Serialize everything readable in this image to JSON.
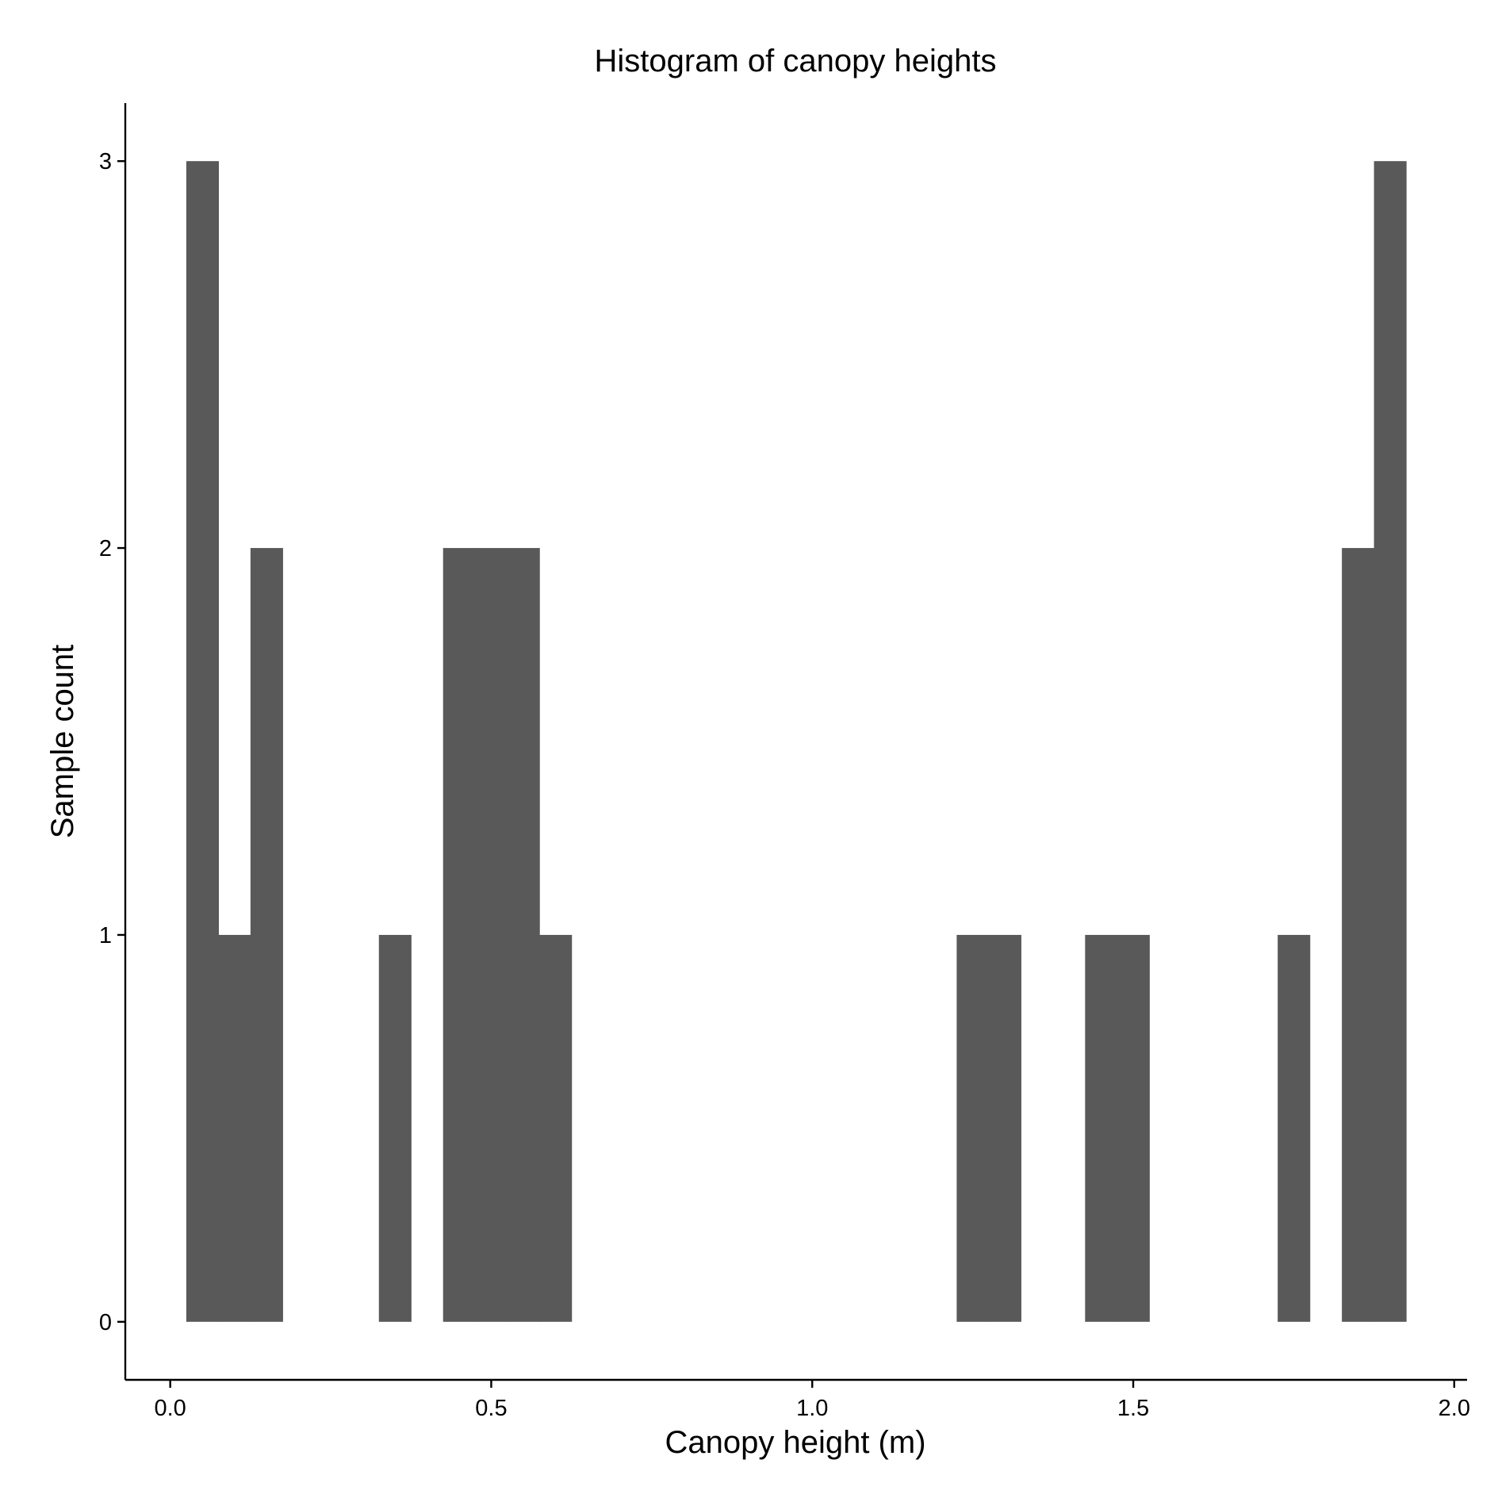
{
  "chart_data": {
    "type": "bar",
    "subtype": "histogram",
    "title": "Histogram of canopy heights",
    "xlabel": "Canopy height (m)",
    "ylabel": "Sample count",
    "bin_width": 0.05,
    "bins": [
      {
        "x0": 0.025,
        "x1": 0.075,
        "count": 3
      },
      {
        "x0": 0.075,
        "x1": 0.125,
        "count": 1
      },
      {
        "x0": 0.125,
        "x1": 0.175,
        "count": 2
      },
      {
        "x0": 0.325,
        "x1": 0.375,
        "count": 1
      },
      {
        "x0": 0.425,
        "x1": 0.475,
        "count": 2
      },
      {
        "x0": 0.475,
        "x1": 0.525,
        "count": 2
      },
      {
        "x0": 0.525,
        "x1": 0.575,
        "count": 2
      },
      {
        "x0": 0.575,
        "x1": 0.625,
        "count": 1
      },
      {
        "x0": 1.225,
        "x1": 1.275,
        "count": 1
      },
      {
        "x0": 1.275,
        "x1": 1.325,
        "count": 1
      },
      {
        "x0": 1.425,
        "x1": 1.475,
        "count": 1
      },
      {
        "x0": 1.475,
        "x1": 1.525,
        "count": 1
      },
      {
        "x0": 1.725,
        "x1": 1.775,
        "count": 1
      },
      {
        "x0": 1.825,
        "x1": 1.875,
        "count": 2
      },
      {
        "x0": 1.875,
        "x1": 1.925,
        "count": 3
      }
    ],
    "xlim": [
      -0.07,
      2.02
    ],
    "ylim": [
      -0.15,
      3.15
    ],
    "xticks": [
      0.0,
      0.5,
      1.0,
      1.5,
      2.0
    ],
    "xtick_labels": [
      "0.0",
      "0.5",
      "1.0",
      "1.5",
      "2.0"
    ],
    "yticks": [
      0,
      1,
      2,
      3
    ],
    "ytick_labels": [
      "0",
      "1",
      "2",
      "3"
    ],
    "bar_color": "#595959",
    "grid": false,
    "legend": "none"
  }
}
